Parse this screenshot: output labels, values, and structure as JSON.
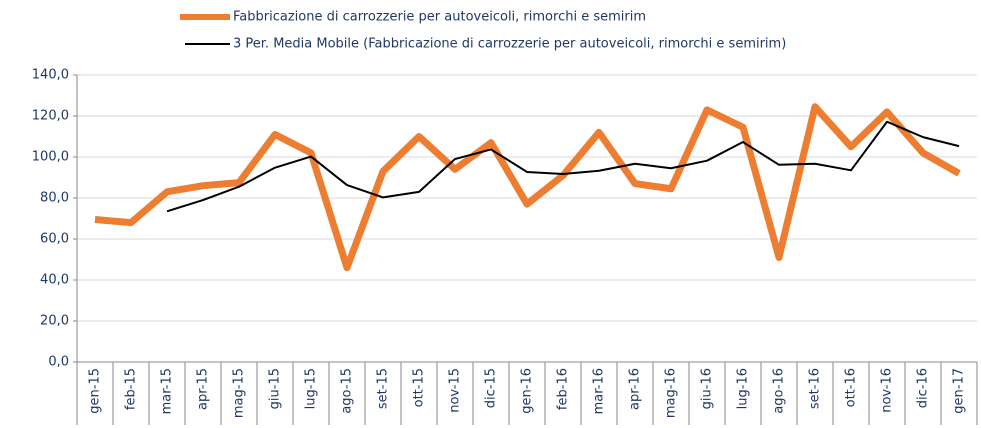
{
  "chart_data": {
    "type": "line",
    "categories": [
      "gen-15",
      "feb-15",
      "mar-15",
      "apr-15",
      "mag-15",
      "giu-15",
      "lug-15",
      "ago-15",
      "set-15",
      "ott-15",
      "nov-15",
      "dic-15",
      "gen-16",
      "feb-16",
      "mar-16",
      "apr-16",
      "mag-16",
      "giu-16",
      "lug-16",
      "ago-16",
      "set-16",
      "ott-16",
      "nov-16",
      "dic-16",
      "gen-17"
    ],
    "series": [
      {
        "name": "Fabbricazione di carrozzerie per autoveicoli, rimorchi e semirim",
        "color": "#ed7d31",
        "values": [
          69.5,
          68,
          83,
          86,
          87.5,
          111,
          102,
          46,
          93,
          110,
          94,
          107,
          77,
          91,
          112,
          87,
          84.5,
          123,
          114.5,
          51,
          124.5,
          105,
          122,
          102,
          92
        ]
      },
      {
        "name": "3 Per. Media Mobile (Fabbricazione di carrozzerie per autoveicoli, rimorchi e semirim)",
        "color": "#000000",
        "values": [
          null,
          null,
          73.5,
          79,
          85.5,
          94.8,
          100.2,
          86.3,
          80.3,
          83,
          99,
          103.7,
          92.7,
          91.7,
          93.3,
          96.7,
          94.5,
          98.2,
          107.3,
          96.2,
          96.7,
          93.5,
          117.2,
          109.7,
          105.3
        ]
      }
    ],
    "ylim": [
      0,
      140
    ],
    "yticks": [
      {
        "value": 0,
        "label": "0,0"
      },
      {
        "value": 20,
        "label": "20,0"
      },
      {
        "value": 40,
        "label": "40,0"
      },
      {
        "value": 60,
        "label": "60,0"
      },
      {
        "value": 80,
        "label": "80,0"
      },
      {
        "value": 100,
        "label": "100,0"
      },
      {
        "value": 120,
        "label": "120,0"
      },
      {
        "value": 140,
        "label": "140,0"
      }
    ],
    "grid": true
  }
}
